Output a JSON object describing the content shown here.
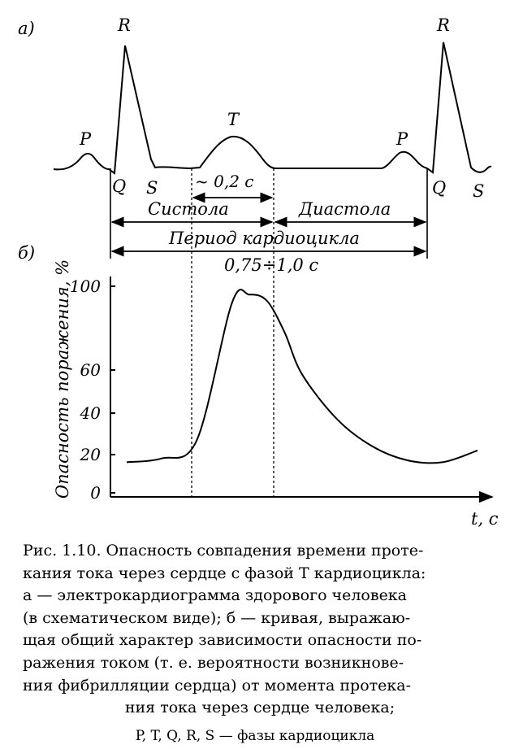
{
  "panel_a": {
    "label": "а)",
    "waves": {
      "P1": "P",
      "R1": "R",
      "Q1": "Q",
      "S1": "S",
      "T": "T",
      "P2": "P",
      "R2": "R",
      "Q2": "Q",
      "S2": "S"
    },
    "interval_t": "~ 0,2 с",
    "systole": "Систола",
    "diastole": "Диастола",
    "period": "Период кардиоцикла",
    "period_value": "0,75÷1,0 с"
  },
  "panel_b": {
    "label": "б)",
    "y_axis_label": "Опасность поражения, %",
    "x_axis_label": "t, c",
    "y_ticks": [
      "100",
      "60",
      "40",
      "20",
      "0"
    ]
  },
  "chart_data": {
    "type": "line",
    "title": "",
    "xlabel": "t, c",
    "ylabel": "Опасность поражения, %",
    "y_ticks": [
      0,
      20,
      40,
      60,
      100
    ],
    "series": [
      {
        "x": [
          0.0,
          0.1,
          0.2,
          0.3,
          0.35,
          0.4,
          0.45,
          0.5,
          0.6,
          0.7,
          0.8,
          0.9,
          1.0
        ],
        "y": [
          16,
          18,
          27,
          92,
          96,
          93,
          78,
          58,
          37,
          24,
          17,
          16,
          22
        ]
      }
    ]
  },
  "caption": {
    "lines": [
      "Рис. 1.10. Опасность совпадения времени проте-",
      "кания тока через сердце с фазой T кардиоцикла:",
      "а — электрокардиограмма здорового человека",
      "(в схематическом виде); б — кривая, выражаю-",
      "щая общий характер зависимости опасности по-",
      "ражения током (т. е. вероятности возникнове-",
      "ния фибрилляции сердца) от момента протека-",
      "ния тока через сердце человека;"
    ],
    "legend": "P, T, Q, R, S — фазы кардиоцикла"
  }
}
